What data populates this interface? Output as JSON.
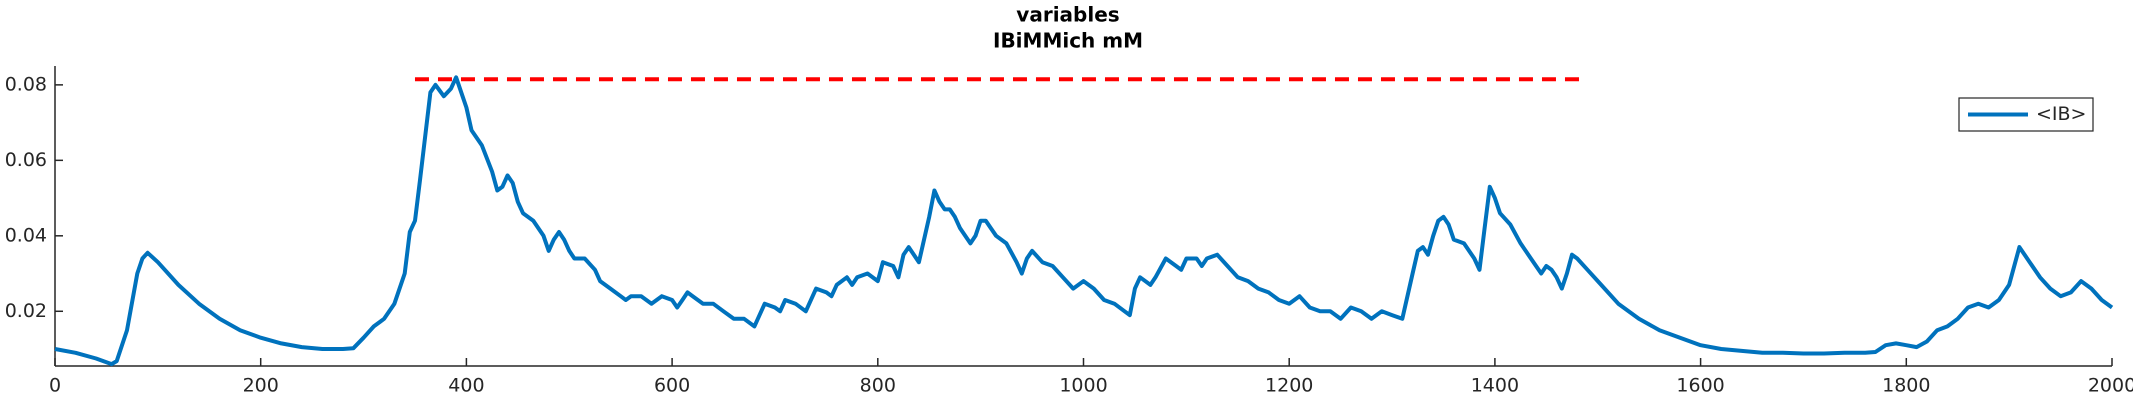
{
  "chart_data": {
    "type": "line",
    "title": "variables",
    "subtitle": "IBiMMich mM",
    "xlim": [
      0,
      2000
    ],
    "xticks": [
      0,
      200,
      400,
      600,
      800,
      1000,
      1200,
      1400,
      1600,
      1800,
      2000
    ],
    "ylim": [
      0.0055,
      0.085
    ],
    "yticks": [
      0.02,
      0.04,
      0.06,
      0.08
    ],
    "grid": false,
    "legend": "top-right",
    "reference_line": {
      "x": [
        350,
        1490
      ],
      "y": 0.0815,
      "color": "#ff0000"
    },
    "series": [
      {
        "name": "<IB>",
        "color": "#0072bd",
        "x": [
          0,
          20,
          40,
          55,
          60,
          70,
          80,
          85,
          90,
          100,
          120,
          140,
          160,
          180,
          200,
          220,
          240,
          260,
          280,
          290,
          300,
          310,
          320,
          330,
          340,
          345,
          350,
          355,
          365,
          370,
          378,
          385,
          390,
          400,
          405,
          415,
          425,
          430,
          435,
          440,
          445,
          450,
          455,
          465,
          475,
          480,
          485,
          490,
          495,
          500,
          505,
          515,
          525,
          530,
          540,
          550,
          555,
          560,
          570,
          580,
          590,
          600,
          605,
          610,
          615,
          620,
          630,
          640,
          650,
          660,
          670,
          680,
          690,
          700,
          705,
          710,
          720,
          730,
          740,
          750,
          755,
          760,
          770,
          775,
          780,
          790,
          800,
          805,
          815,
          820,
          825,
          830,
          840,
          850,
          855,
          860,
          865,
          870,
          875,
          880,
          890,
          895,
          900,
          905,
          910,
          915,
          925,
          935,
          940,
          945,
          950,
          960,
          970,
          980,
          990,
          1000,
          1010,
          1020,
          1030,
          1040,
          1045,
          1050,
          1055,
          1065,
          1070,
          1080,
          1090,
          1095,
          1100,
          1110,
          1115,
          1120,
          1130,
          1140,
          1150,
          1160,
          1170,
          1180,
          1190,
          1200,
          1210,
          1220,
          1230,
          1240,
          1250,
          1260,
          1270,
          1280,
          1290,
          1300,
          1310,
          1320,
          1325,
          1330,
          1335,
          1340,
          1345,
          1350,
          1355,
          1360,
          1370,
          1380,
          1385,
          1390,
          1395,
          1400,
          1405,
          1415,
          1425,
          1435,
          1445,
          1450,
          1455,
          1460,
          1465,
          1470,
          1475,
          1480,
          1490,
          1500,
          1520,
          1540,
          1560,
          1580,
          1600,
          1620,
          1640,
          1660,
          1680,
          1700,
          1720,
          1740,
          1760,
          1770,
          1780,
          1790,
          1800,
          1810,
          1820,
          1830,
          1840,
          1850,
          1860,
          1870,
          1880,
          1890,
          1900,
          1910,
          1920,
          1930,
          1940,
          1950,
          1960,
          1970,
          1980,
          1990,
          2000
        ],
        "values": [
          0.01,
          0.009,
          0.0075,
          0.006,
          0.0068,
          0.015,
          0.03,
          0.034,
          0.0355,
          0.033,
          0.027,
          0.022,
          0.018,
          0.015,
          0.013,
          0.0115,
          0.0105,
          0.01,
          0.01,
          0.0102,
          0.013,
          0.016,
          0.018,
          0.022,
          0.03,
          0.041,
          0.044,
          0.055,
          0.078,
          0.08,
          0.077,
          0.079,
          0.082,
          0.074,
          0.068,
          0.064,
          0.057,
          0.052,
          0.053,
          0.056,
          0.054,
          0.049,
          0.046,
          0.044,
          0.04,
          0.036,
          0.039,
          0.041,
          0.039,
          0.036,
          0.034,
          0.034,
          0.031,
          0.028,
          0.026,
          0.024,
          0.023,
          0.024,
          0.024,
          0.022,
          0.024,
          0.023,
          0.021,
          0.023,
          0.025,
          0.024,
          0.022,
          0.022,
          0.02,
          0.018,
          0.018,
          0.016,
          0.022,
          0.021,
          0.02,
          0.023,
          0.022,
          0.02,
          0.026,
          0.025,
          0.024,
          0.027,
          0.029,
          0.027,
          0.029,
          0.03,
          0.028,
          0.033,
          0.032,
          0.029,
          0.035,
          0.037,
          0.033,
          0.045,
          0.052,
          0.049,
          0.047,
          0.047,
          0.045,
          0.042,
          0.038,
          0.04,
          0.044,
          0.044,
          0.042,
          0.04,
          0.038,
          0.033,
          0.03,
          0.034,
          0.036,
          0.033,
          0.032,
          0.029,
          0.026,
          0.028,
          0.026,
          0.023,
          0.022,
          0.02,
          0.019,
          0.026,
          0.029,
          0.027,
          0.029,
          0.034,
          0.032,
          0.031,
          0.034,
          0.034,
          0.032,
          0.034,
          0.035,
          0.032,
          0.029,
          0.028,
          0.026,
          0.025,
          0.023,
          0.022,
          0.024,
          0.021,
          0.02,
          0.02,
          0.018,
          0.021,
          0.02,
          0.018,
          0.02,
          0.019,
          0.018,
          0.03,
          0.036,
          0.037,
          0.035,
          0.04,
          0.044,
          0.045,
          0.043,
          0.039,
          0.038,
          0.034,
          0.031,
          0.042,
          0.053,
          0.05,
          0.046,
          0.043,
          0.038,
          0.034,
          0.03,
          0.032,
          0.031,
          0.029,
          0.026,
          0.03,
          0.035,
          0.034,
          0.031,
          0.028,
          0.022,
          0.018,
          0.015,
          0.013,
          0.011,
          0.01,
          0.0095,
          0.009,
          0.009,
          0.0088,
          0.0088,
          0.009,
          0.009,
          0.0092,
          0.011,
          0.0115,
          0.011,
          0.0105,
          0.012,
          0.015,
          0.016,
          0.018,
          0.021,
          0.022,
          0.021,
          0.023,
          0.027,
          0.037,
          0.033,
          0.029,
          0.026,
          0.024,
          0.025,
          0.028,
          0.026,
          0.023,
          0.021
        ]
      }
    ]
  }
}
